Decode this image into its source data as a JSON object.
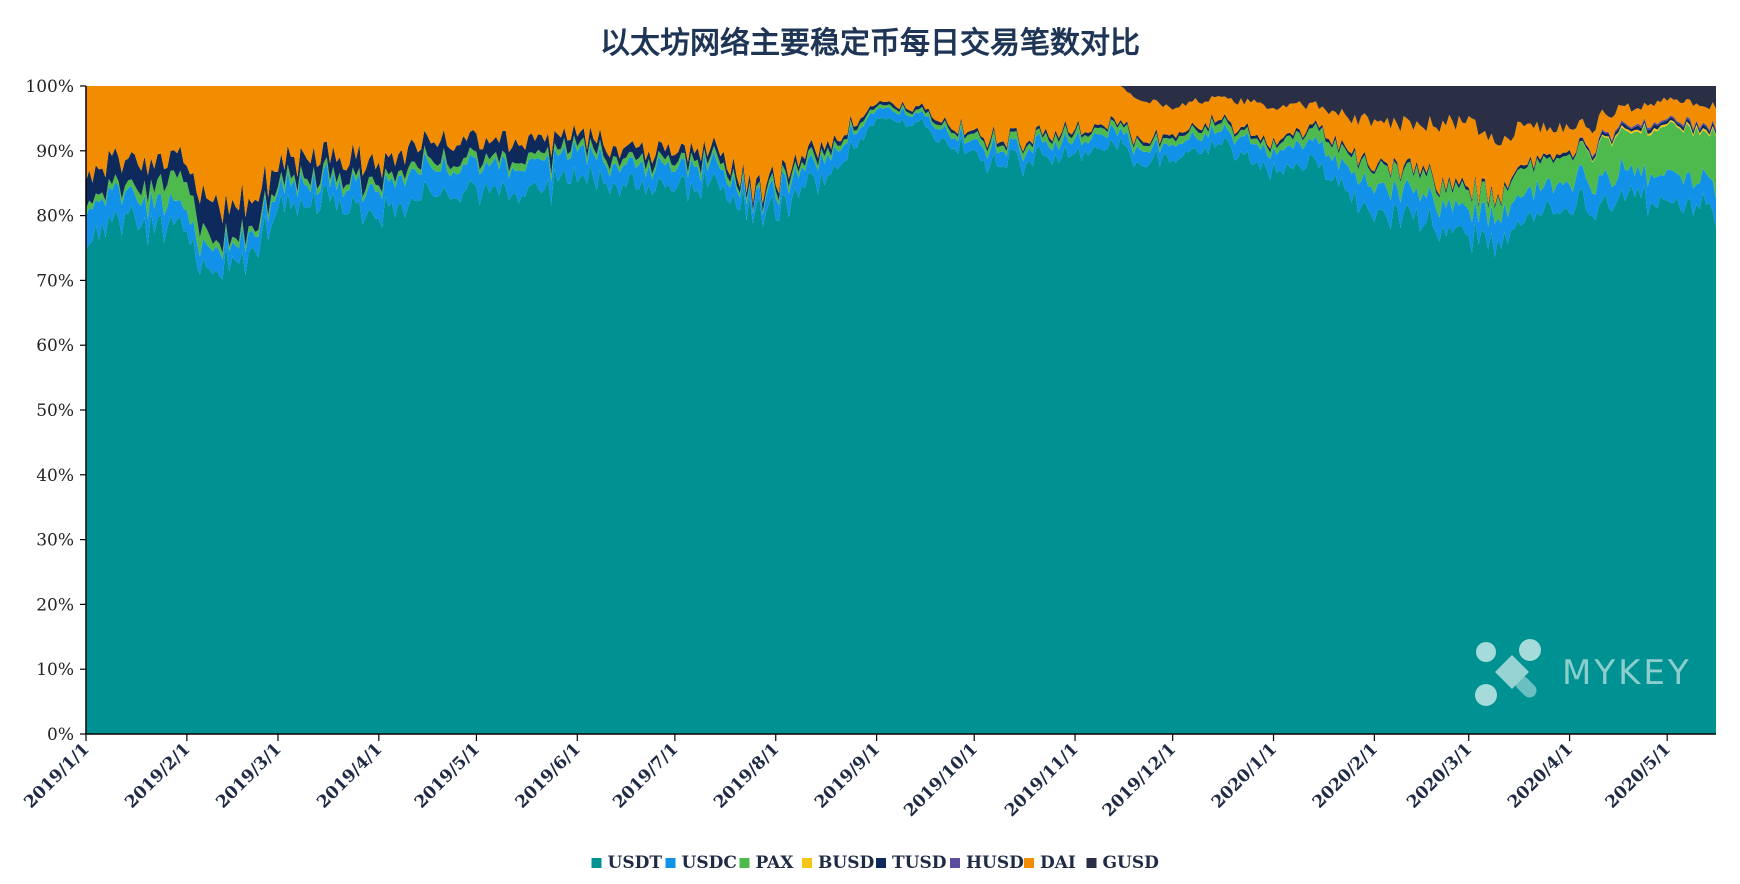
{
  "chart_data": {
    "type": "area",
    "stacked": true,
    "normalized": true,
    "title": "以太坊网络主要稳定币每日交易笔数对比",
    "xlabel": "",
    "ylabel": "",
    "ylim": [
      0,
      100
    ],
    "y_ticks": [
      "0%",
      "10%",
      "20%",
      "30%",
      "40%",
      "50%",
      "60%",
      "70%",
      "80%",
      "90%",
      "100%"
    ],
    "x_ticks": [
      "2019/1/1",
      "2019/2/1",
      "2019/3/1",
      "2019/4/1",
      "2019/5/1",
      "2019/6/1",
      "2019/7/1",
      "2019/8/1",
      "2019/9/1",
      "2019/10/1",
      "2019/11/1",
      "2019/12/1",
      "2020/1/1",
      "2020/2/1",
      "2020/3/1",
      "2020/4/1",
      "2020/5/1"
    ],
    "x_start": "2019/1/1",
    "x_end": "2020/5/16",
    "legend_position": "bottom",
    "grid": false,
    "x_anchors": [
      "2019/1/1",
      "2019/1/15",
      "2019/2/1",
      "2019/2/10",
      "2019/3/1",
      "2019/3/15",
      "2019/4/1",
      "2019/4/15",
      "2019/5/1",
      "2019/5/15",
      "2019/6/1",
      "2019/6/15",
      "2019/7/1",
      "2019/7/15",
      "2019/7/26",
      "2019/8/1",
      "2019/8/15",
      "2019/9/1",
      "2019/9/15",
      "2019/10/1",
      "2019/10/15",
      "2019/11/1",
      "2019/11/15",
      "2019/11/20",
      "2019/12/1",
      "2019/12/15",
      "2020/1/1",
      "2020/1/15",
      "2020/2/1",
      "2020/2/15",
      "2020/3/1",
      "2020/3/10",
      "2020/3/20",
      "2020/4/1",
      "2020/4/15",
      "2020/5/1",
      "2020/5/16"
    ],
    "series": [
      {
        "name": "USDT",
        "color": "#009193",
        "values": [
          76,
          80,
          78,
          70,
          80,
          83,
          79,
          84,
          84,
          83,
          86,
          85,
          85,
          84,
          80,
          81,
          85,
          95,
          94,
          89,
          88,
          90,
          91,
          88,
          89,
          91,
          87,
          88,
          80,
          80,
          76,
          77,
          80,
          81,
          81,
          83,
          81
        ]
      },
      {
        "name": "USDC",
        "color": "#1191e8",
        "values": [
          5,
          4,
          3,
          3,
          3,
          3,
          4,
          4,
          4,
          4,
          4,
          3,
          3,
          3,
          2,
          3,
          3,
          1.5,
          1.5,
          2,
          2,
          2,
          2,
          2,
          2,
          2,
          3,
          3,
          4,
          4,
          4,
          4,
          4,
          4,
          4,
          4,
          4
        ]
      },
      {
        "name": "PAX",
        "color": "#4eba4e",
        "values": [
          1,
          1,
          5,
          1,
          1,
          1,
          1,
          1,
          1,
          1,
          1,
          1,
          1,
          1,
          0.5,
          1,
          1,
          0.5,
          0.5,
          1,
          1,
          1,
          1,
          1,
          1,
          1,
          1,
          2,
          3,
          3,
          3,
          3,
          4,
          4,
          6,
          7,
          8
        ]
      },
      {
        "name": "BUSD",
        "color": "#f5c518",
        "values": [
          0,
          0,
          0,
          0,
          0,
          0,
          0,
          0,
          0,
          0,
          0,
          0,
          0,
          0,
          0,
          0,
          0,
          0,
          0,
          0,
          0,
          0,
          0,
          0,
          0,
          0,
          0,
          0,
          0,
          0,
          0,
          0,
          0,
          0,
          0.3,
          0.3,
          0.3
        ]
      },
      {
        "name": "TUSD",
        "color": "#0e2a5c",
        "values": [
          4,
          4,
          3,
          6,
          3,
          3,
          3,
          3,
          3,
          3,
          1.5,
          1.5,
          1.5,
          1.5,
          1,
          1,
          1,
          0.5,
          0.5,
          0.5,
          0.5,
          0.5,
          0.5,
          0.5,
          0.5,
          0.5,
          0.5,
          0.5,
          0.5,
          0.5,
          0.5,
          0.5,
          0.5,
          0.5,
          0.5,
          0.5,
          0.5
        ]
      },
      {
        "name": "HUSD",
        "color": "#5b4e9e",
        "values": [
          0,
          0,
          0,
          0,
          0,
          0,
          0,
          0,
          0,
          0,
          0,
          0,
          0,
          0,
          0,
          0,
          0,
          0,
          0,
          0,
          0,
          0,
          0,
          0,
          0,
          0,
          0,
          0,
          0,
          0,
          0,
          0,
          0,
          0,
          0.3,
          0.3,
          0.3
        ]
      },
      {
        "name": "DAI",
        "color": "#f28c00",
        "values": [
          14,
          11,
          11,
          20,
          13,
          10,
          13,
          8,
          8,
          9,
          7.5,
          9.5,
          9.5,
          10.5,
          16.5,
          14,
          10,
          2.5,
          3.5,
          7.5,
          8.5,
          6.5,
          5.5,
          6.5,
          4.5,
          3.5,
          5.5,
          3.5,
          6.5,
          6.5,
          10.5,
          7.5,
          5.5,
          3.5,
          2.9,
          2.9,
          2.9
        ]
      },
      {
        "name": "GUSD",
        "color": "#2a2f45",
        "values": [
          0,
          0,
          0,
          0,
          0,
          0,
          0,
          0,
          0,
          0,
          0,
          0,
          0,
          0,
          0,
          0,
          0,
          0,
          0,
          0,
          0,
          0,
          0,
          2,
          3,
          2,
          3,
          3,
          6,
          6,
          6,
          8,
          6,
          7,
          4,
          2,
          3
        ]
      }
    ]
  },
  "watermark": {
    "text": "MYKEY"
  }
}
